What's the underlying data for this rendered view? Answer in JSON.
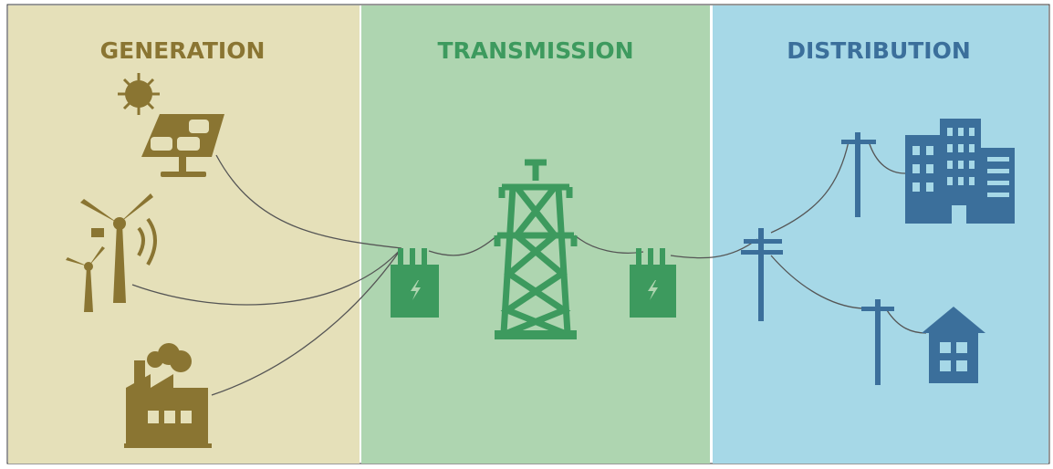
{
  "sections": [
    {
      "title": "GENERATION"
    },
    {
      "title": "TRANSMISSION"
    },
    {
      "title": "DISTRIBUTION"
    }
  ]
}
